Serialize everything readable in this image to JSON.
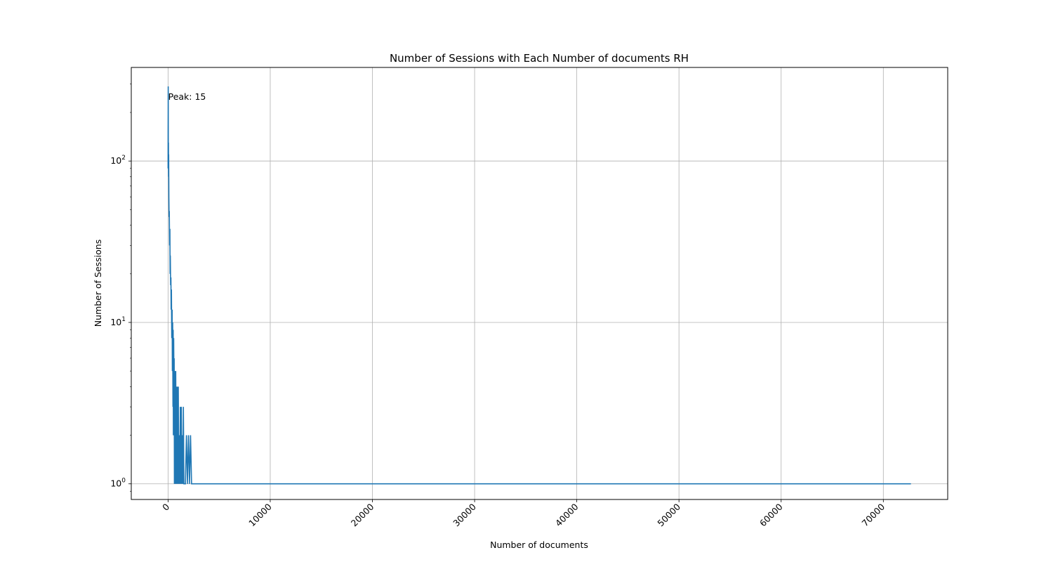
{
  "chart_data": {
    "type": "line",
    "title": "Number of Sessions with Each Number of documents RH",
    "xlabel": "Number of documents",
    "ylabel": "Number of Sessions",
    "xlim": [
      -3600,
      76300
    ],
    "ylim": [
      0.8,
      380
    ],
    "yscale": "log",
    "grid": true,
    "line_color": "#1f77b4",
    "x_ticks": [
      0,
      10000,
      20000,
      30000,
      40000,
      50000,
      60000,
      70000
    ],
    "x_tick_labels": [
      "0",
      "10000",
      "20000",
      "30000",
      "40000",
      "50000",
      "60000",
      "70000"
    ],
    "y_ticks": [
      1,
      10,
      100
    ],
    "y_tick_bases": [
      "10",
      "10",
      "10"
    ],
    "y_tick_exponents": [
      "0",
      "1",
      "2"
    ],
    "annotation": {
      "text": "Peak: 15",
      "x": 15,
      "y": 250
    },
    "x": [
      1,
      5,
      10,
      15,
      20,
      25,
      30,
      40,
      50,
      60,
      80,
      100,
      120,
      150,
      180,
      200,
      220,
      250,
      280,
      300,
      330,
      360,
      400,
      420,
      450,
      480,
      500,
      520,
      550,
      580,
      600,
      620,
      650,
      680,
      700,
      720,
      750,
      780,
      800,
      820,
      850,
      880,
      900,
      920,
      950,
      980,
      1000,
      1050,
      1100,
      1150,
      1200,
      1250,
      1300,
      1350,
      1400,
      1450,
      1500,
      1550,
      1600,
      1700,
      1800,
      1900,
      2000,
      2100,
      2200,
      2300,
      2400,
      2500,
      3000,
      10000,
      20000,
      30000,
      40000,
      50000,
      60000,
      72700
    ],
    "y": [
      90,
      150,
      200,
      290,
      240,
      120,
      100,
      130,
      80,
      110,
      60,
      45,
      49,
      30,
      38,
      20,
      26,
      17,
      19,
      12,
      16,
      8,
      12,
      5,
      10,
      3,
      9,
      2,
      8,
      4,
      6,
      1,
      5,
      2,
      3,
      1,
      5,
      2,
      4,
      1,
      3,
      1,
      4,
      2,
      3,
      1,
      4,
      1,
      2,
      1,
      3,
      1,
      3,
      1,
      2,
      1,
      3,
      1,
      1,
      1,
      2,
      1,
      2,
      1,
      2,
      1,
      1,
      1,
      1,
      1,
      1,
      1,
      1,
      1,
      1,
      1
    ]
  }
}
